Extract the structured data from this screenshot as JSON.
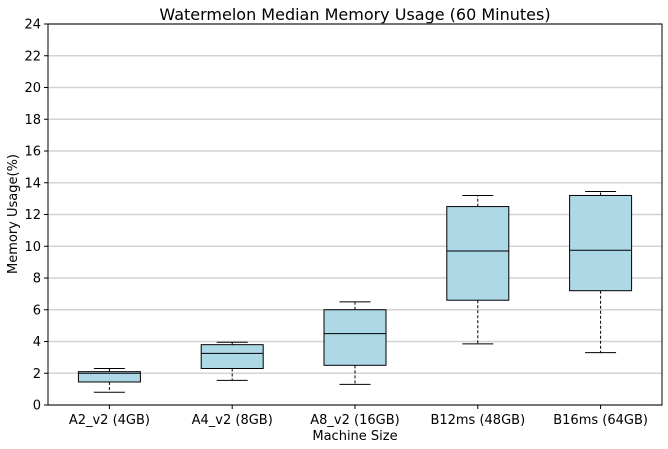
{
  "chart_data": {
    "type": "box",
    "title": "Watermelon Median Memory Usage (60 Minutes)",
    "xlabel": "Machine Size",
    "ylabel": "Memory Usage(%)",
    "ylim": [
      0,
      24
    ],
    "yticks": [
      0,
      2,
      4,
      6,
      8,
      10,
      12,
      14,
      16,
      18,
      20,
      22,
      24
    ],
    "grid": "horizontal",
    "colors": {
      "box_fill": "#add8e6",
      "edge": "#000000",
      "grid": "#d3d3d3"
    },
    "categories": [
      "A2_v2 (4GB)",
      "A4_v2 (8GB)",
      "A8_v2 (16GB)",
      "B12ms (48GB)",
      "B16ms (64GB)"
    ],
    "boxes": [
      {
        "min": 0.8,
        "q1": 1.45,
        "median": 2.0,
        "q3": 2.1,
        "max": 2.3
      },
      {
        "min": 1.55,
        "q1": 2.3,
        "median": 3.25,
        "q3": 3.8,
        "max": 3.95
      },
      {
        "min": 1.3,
        "q1": 2.5,
        "median": 4.5,
        "q3": 6.0,
        "max": 6.5
      },
      {
        "min": 3.85,
        "q1": 6.6,
        "median": 9.7,
        "q3": 12.5,
        "max": 13.2
      },
      {
        "min": 3.3,
        "q1": 7.2,
        "median": 9.75,
        "q3": 13.2,
        "max": 13.45
      }
    ]
  }
}
